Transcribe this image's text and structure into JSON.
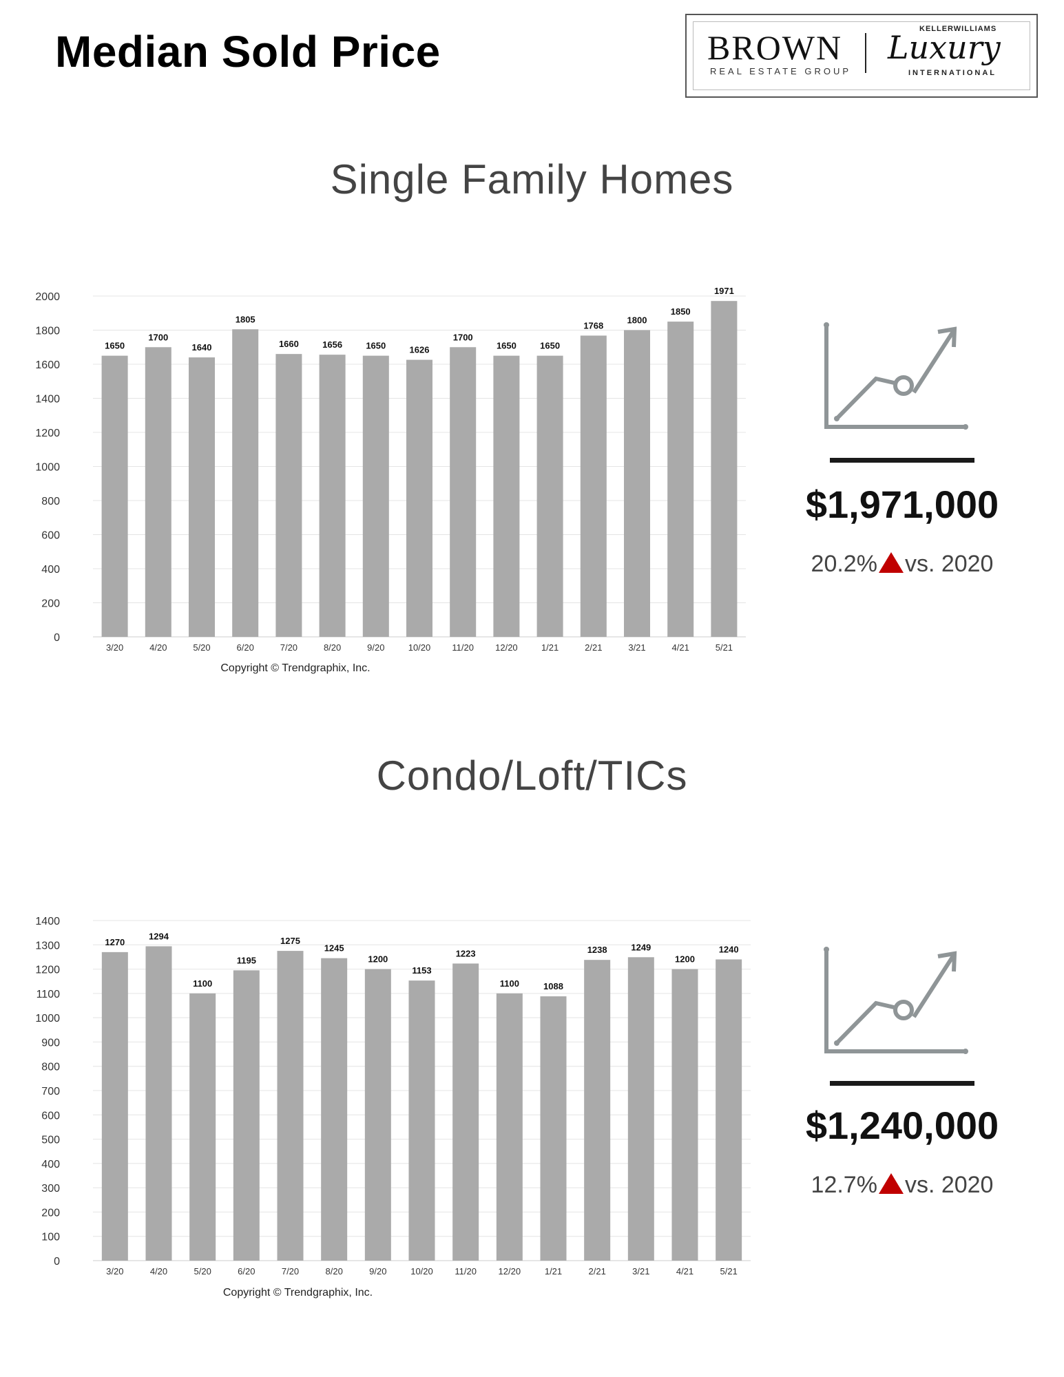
{
  "header": {
    "title": "Median Sold Price"
  },
  "logo": {
    "brand": "BROWN",
    "subtitle": "REAL ESTATE GROUP",
    "partner_top": "KELLERWILLIAMS",
    "partner_main": "Luxury",
    "partner_bottom": "INTERNATIONAL"
  },
  "colors": {
    "bar": "#aaaaaa",
    "accent_up": "#c00000",
    "rule": "#1a1a1a",
    "icon": "#8f9597"
  },
  "sections": [
    {
      "title": "Single Family Homes",
      "stat_value": "$1,971,000",
      "stat_pct": "20.2%",
      "stat_suffix": "vs. 2020",
      "icon": "trend-up-chart-icon"
    },
    {
      "title": "Condo/Loft/TICs",
      "stat_value": "$1,240,000",
      "stat_pct": "12.7%",
      "stat_suffix": "vs. 2020",
      "icon": "trend-up-chart-icon"
    }
  ],
  "chart_data": [
    {
      "type": "bar",
      "title": "Single Family Homes",
      "categories": [
        "3/20",
        "4/20",
        "5/20",
        "6/20",
        "7/20",
        "8/20",
        "9/20",
        "10/20",
        "11/20",
        "12/20",
        "1/21",
        "2/21",
        "3/21",
        "4/21",
        "5/21"
      ],
      "values": [
        1650,
        1700,
        1640,
        1805,
        1660,
        1656,
        1650,
        1626,
        1700,
        1650,
        1650,
        1768,
        1800,
        1850,
        1971
      ],
      "ylim": [
        0,
        2000
      ],
      "yticks": [
        0,
        200,
        400,
        600,
        800,
        1000,
        1200,
        1400,
        1600,
        1800,
        2000
      ],
      "grid": true,
      "caption": "Copyright © Trendgraphix, Inc."
    },
    {
      "type": "bar",
      "title": "Condo/Loft/TICs",
      "categories": [
        "3/20",
        "4/20",
        "5/20",
        "6/20",
        "7/20",
        "8/20",
        "9/20",
        "10/20",
        "11/20",
        "12/20",
        "1/21",
        "2/21",
        "3/21",
        "4/21",
        "5/21"
      ],
      "values": [
        1270,
        1294,
        1100,
        1195,
        1275,
        1245,
        1200,
        1153,
        1223,
        1100,
        1088,
        1238,
        1249,
        1200,
        1240
      ],
      "ylim": [
        0,
        1400
      ],
      "yticks": [
        0,
        100,
        200,
        300,
        400,
        500,
        600,
        700,
        800,
        900,
        1000,
        1100,
        1200,
        1300,
        1400
      ],
      "grid": true,
      "caption": "Copyright © Trendgraphix, Inc."
    }
  ]
}
